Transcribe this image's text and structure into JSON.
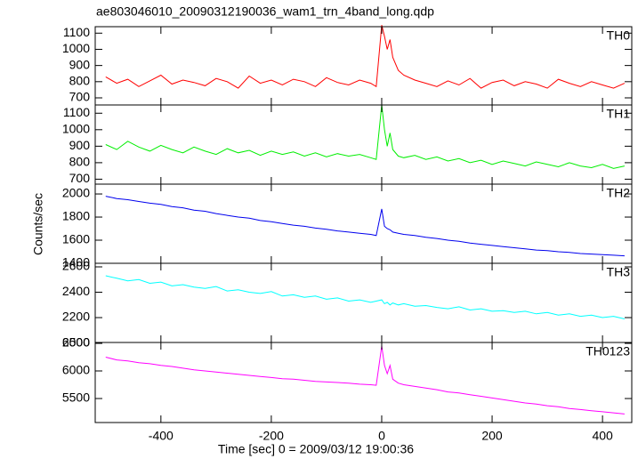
{
  "title": "ae803046010_20090312190036_wam1_trn_4band_long.qdp",
  "xlabel": "Time [sec] 0 = 2009/03/12 19:00:36",
  "ylabel": "Counts/sec",
  "chart_data": [
    {
      "type": "line",
      "label": "TH0",
      "color": "#ff0000",
      "xlim": [
        -519,
        453
      ],
      "xticks": [
        -400,
        -200,
        0,
        200,
        400
      ],
      "ylim": [
        656,
        1140
      ],
      "yticks": [
        700,
        800,
        900,
        1000,
        1100
      ],
      "x": [
        -500,
        -480,
        -460,
        -440,
        -420,
        -400,
        -380,
        -360,
        -340,
        -320,
        -300,
        -280,
        -260,
        -240,
        -220,
        -200,
        -180,
        -160,
        -140,
        -120,
        -100,
        -80,
        -60,
        -40,
        -20,
        -10,
        0,
        5,
        10,
        15,
        20,
        30,
        40,
        60,
        80,
        100,
        120,
        140,
        160,
        180,
        200,
        220,
        240,
        260,
        280,
        300,
        320,
        340,
        360,
        380,
        400,
        420,
        440
      ],
      "values": [
        830,
        790,
        815,
        770,
        805,
        840,
        785,
        810,
        795,
        775,
        820,
        800,
        760,
        835,
        790,
        810,
        780,
        815,
        800,
        770,
        825,
        795,
        780,
        810,
        790,
        770,
        1150,
        1080,
        1000,
        1060,
        950,
        870,
        840,
        810,
        790,
        770,
        805,
        780,
        820,
        760,
        795,
        810,
        775,
        800,
        785,
        760,
        815,
        790,
        770,
        800,
        780,
        760,
        790
      ]
    },
    {
      "type": "line",
      "label": "TH1",
      "color": "#00ee00",
      "xlim": [
        -519,
        453
      ],
      "xticks": [
        -400,
        -200,
        0,
        200,
        400
      ],
      "ylim": [
        670,
        1150
      ],
      "yticks": [
        700,
        800,
        900,
        1000,
        1100
      ],
      "x": [
        -500,
        -480,
        -460,
        -440,
        -420,
        -400,
        -380,
        -360,
        -340,
        -320,
        -300,
        -280,
        -260,
        -240,
        -220,
        -200,
        -180,
        -160,
        -140,
        -120,
        -100,
        -80,
        -60,
        -40,
        -20,
        -10,
        0,
        5,
        10,
        15,
        20,
        30,
        40,
        60,
        80,
        100,
        120,
        140,
        160,
        180,
        200,
        220,
        240,
        260,
        280,
        300,
        320,
        340,
        360,
        380,
        400,
        420,
        440
      ],
      "values": [
        910,
        880,
        930,
        895,
        870,
        905,
        880,
        860,
        895,
        870,
        850,
        885,
        860,
        875,
        845,
        870,
        850,
        865,
        840,
        860,
        835,
        855,
        840,
        850,
        830,
        820,
        1150,
        1000,
        900,
        980,
        880,
        840,
        830,
        845,
        820,
        835,
        810,
        825,
        800,
        815,
        790,
        810,
        795,
        780,
        805,
        790,
        775,
        800,
        780,
        770,
        790,
        765,
        780
      ]
    },
    {
      "type": "line",
      "label": "TH2",
      "color": "#0000ee",
      "xlim": [
        -519,
        453
      ],
      "xticks": [
        -400,
        -200,
        0,
        200,
        400
      ],
      "ylim": [
        1400,
        2085
      ],
      "yticks": [
        1400,
        1600,
        1800,
        2000
      ],
      "x": [
        -500,
        -480,
        -460,
        -440,
        -420,
        -400,
        -380,
        -360,
        -340,
        -320,
        -300,
        -280,
        -260,
        -240,
        -220,
        -200,
        -180,
        -160,
        -140,
        -120,
        -100,
        -80,
        -60,
        -40,
        -20,
        -10,
        0,
        5,
        10,
        15,
        20,
        30,
        40,
        60,
        80,
        100,
        120,
        140,
        160,
        180,
        200,
        220,
        240,
        260,
        280,
        300,
        320,
        340,
        360,
        380,
        400,
        420,
        440
      ],
      "values": [
        1980,
        1960,
        1950,
        1935,
        1920,
        1910,
        1890,
        1880,
        1860,
        1850,
        1830,
        1815,
        1800,
        1790,
        1770,
        1760,
        1745,
        1730,
        1720,
        1705,
        1695,
        1680,
        1670,
        1660,
        1650,
        1640,
        1870,
        1720,
        1700,
        1690,
        1670,
        1660,
        1650,
        1640,
        1625,
        1615,
        1600,
        1590,
        1575,
        1565,
        1555,
        1545,
        1535,
        1525,
        1515,
        1510,
        1500,
        1495,
        1485,
        1480,
        1475,
        1470,
        1465
      ]
    },
    {
      "type": "line",
      "label": "TH3",
      "color": "#00ffff",
      "xlim": [
        -519,
        453
      ],
      "xticks": [
        -400,
        -200,
        0,
        200,
        400
      ],
      "ylim": [
        2004,
        2628
      ],
      "yticks": [
        2000,
        2200,
        2400,
        2600
      ],
      "x": [
        -500,
        -480,
        -460,
        -440,
        -420,
        -400,
        -380,
        -360,
        -340,
        -320,
        -300,
        -280,
        -260,
        -240,
        -220,
        -200,
        -180,
        -160,
        -140,
        -120,
        -100,
        -80,
        -60,
        -40,
        -20,
        -10,
        0,
        5,
        10,
        15,
        20,
        30,
        40,
        60,
        80,
        100,
        120,
        140,
        160,
        180,
        200,
        220,
        240,
        260,
        280,
        300,
        320,
        340,
        360,
        380,
        400,
        420,
        440
      ],
      "values": [
        2530,
        2510,
        2490,
        2500,
        2470,
        2480,
        2450,
        2460,
        2440,
        2430,
        2445,
        2410,
        2420,
        2400,
        2390,
        2405,
        2370,
        2380,
        2360,
        2370,
        2345,
        2355,
        2330,
        2340,
        2320,
        2330,
        2340,
        2310,
        2320,
        2300,
        2315,
        2300,
        2310,
        2290,
        2295,
        2280,
        2270,
        2285,
        2260,
        2270,
        2250,
        2255,
        2240,
        2250,
        2230,
        2240,
        2220,
        2230,
        2210,
        2220,
        2200,
        2210,
        2190
      ]
    },
    {
      "type": "line",
      "label": "TH0123",
      "color": "#ff00ff",
      "xlim": [
        -519,
        453
      ],
      "xticks": [
        -400,
        -200,
        0,
        200,
        400
      ],
      "ylim": [
        5065,
        6516
      ],
      "yticks": [
        5500,
        6000,
        6500
      ],
      "x": [
        -500,
        -480,
        -460,
        -440,
        -420,
        -400,
        -380,
        -360,
        -340,
        -320,
        -300,
        -280,
        -260,
        -240,
        -220,
        -200,
        -180,
        -160,
        -140,
        -120,
        -100,
        -80,
        -60,
        -40,
        -20,
        -10,
        0,
        5,
        10,
        15,
        20,
        30,
        40,
        60,
        80,
        100,
        120,
        140,
        160,
        180,
        200,
        220,
        240,
        260,
        280,
        300,
        320,
        340,
        360,
        380,
        400,
        420,
        440
      ],
      "values": [
        6250,
        6200,
        6180,
        6150,
        6130,
        6100,
        6080,
        6050,
        6020,
        6000,
        5980,
        5960,
        5940,
        5920,
        5900,
        5880,
        5860,
        5850,
        5830,
        5810,
        5800,
        5790,
        5780,
        5760,
        5750,
        5740,
        6450,
        6100,
        5950,
        6100,
        5850,
        5780,
        5750,
        5720,
        5690,
        5660,
        5620,
        5600,
        5570,
        5540,
        5510,
        5480,
        5450,
        5420,
        5400,
        5370,
        5350,
        5320,
        5300,
        5280,
        5260,
        5240,
        5220
      ]
    }
  ]
}
